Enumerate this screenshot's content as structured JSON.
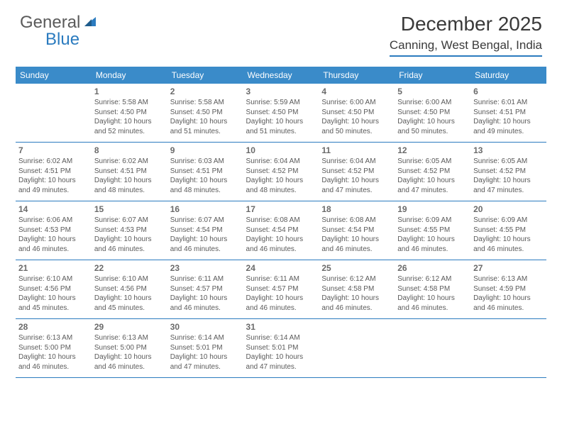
{
  "brand": {
    "part1": "General",
    "part2": "Blue"
  },
  "title": "December 2025",
  "location": "Canning, West Bengal, India",
  "colors": {
    "header_bg": "#3a8bc9",
    "header_rule": "#2b7bbf",
    "text": "#4a4a4a",
    "daynum": "#6a6a6a",
    "white": "#ffffff"
  },
  "typography": {
    "title_fontsize": 28,
    "location_fontsize": 17,
    "header_fontsize": 12,
    "daynum_fontsize": 12,
    "body_fontsize": 10
  },
  "dayHeaders": [
    "Sunday",
    "Monday",
    "Tuesday",
    "Wednesday",
    "Thursday",
    "Friday",
    "Saturday"
  ],
  "weeks": [
    [
      null,
      {
        "n": "1",
        "sr": "Sunrise: 5:58 AM",
        "ss": "Sunset: 4:50 PM",
        "dl": "Daylight: 10 hours and 52 minutes."
      },
      {
        "n": "2",
        "sr": "Sunrise: 5:58 AM",
        "ss": "Sunset: 4:50 PM",
        "dl": "Daylight: 10 hours and 51 minutes."
      },
      {
        "n": "3",
        "sr": "Sunrise: 5:59 AM",
        "ss": "Sunset: 4:50 PM",
        "dl": "Daylight: 10 hours and 51 minutes."
      },
      {
        "n": "4",
        "sr": "Sunrise: 6:00 AM",
        "ss": "Sunset: 4:50 PM",
        "dl": "Daylight: 10 hours and 50 minutes."
      },
      {
        "n": "5",
        "sr": "Sunrise: 6:00 AM",
        "ss": "Sunset: 4:50 PM",
        "dl": "Daylight: 10 hours and 50 minutes."
      },
      {
        "n": "6",
        "sr": "Sunrise: 6:01 AM",
        "ss": "Sunset: 4:51 PM",
        "dl": "Daylight: 10 hours and 49 minutes."
      }
    ],
    [
      {
        "n": "7",
        "sr": "Sunrise: 6:02 AM",
        "ss": "Sunset: 4:51 PM",
        "dl": "Daylight: 10 hours and 49 minutes."
      },
      {
        "n": "8",
        "sr": "Sunrise: 6:02 AM",
        "ss": "Sunset: 4:51 PM",
        "dl": "Daylight: 10 hours and 48 minutes."
      },
      {
        "n": "9",
        "sr": "Sunrise: 6:03 AM",
        "ss": "Sunset: 4:51 PM",
        "dl": "Daylight: 10 hours and 48 minutes."
      },
      {
        "n": "10",
        "sr": "Sunrise: 6:04 AM",
        "ss": "Sunset: 4:52 PM",
        "dl": "Daylight: 10 hours and 48 minutes."
      },
      {
        "n": "11",
        "sr": "Sunrise: 6:04 AM",
        "ss": "Sunset: 4:52 PM",
        "dl": "Daylight: 10 hours and 47 minutes."
      },
      {
        "n": "12",
        "sr": "Sunrise: 6:05 AM",
        "ss": "Sunset: 4:52 PM",
        "dl": "Daylight: 10 hours and 47 minutes."
      },
      {
        "n": "13",
        "sr": "Sunrise: 6:05 AM",
        "ss": "Sunset: 4:52 PM",
        "dl": "Daylight: 10 hours and 47 minutes."
      }
    ],
    [
      {
        "n": "14",
        "sr": "Sunrise: 6:06 AM",
        "ss": "Sunset: 4:53 PM",
        "dl": "Daylight: 10 hours and 46 minutes."
      },
      {
        "n": "15",
        "sr": "Sunrise: 6:07 AM",
        "ss": "Sunset: 4:53 PM",
        "dl": "Daylight: 10 hours and 46 minutes."
      },
      {
        "n": "16",
        "sr": "Sunrise: 6:07 AM",
        "ss": "Sunset: 4:54 PM",
        "dl": "Daylight: 10 hours and 46 minutes."
      },
      {
        "n": "17",
        "sr": "Sunrise: 6:08 AM",
        "ss": "Sunset: 4:54 PM",
        "dl": "Daylight: 10 hours and 46 minutes."
      },
      {
        "n": "18",
        "sr": "Sunrise: 6:08 AM",
        "ss": "Sunset: 4:54 PM",
        "dl": "Daylight: 10 hours and 46 minutes."
      },
      {
        "n": "19",
        "sr": "Sunrise: 6:09 AM",
        "ss": "Sunset: 4:55 PM",
        "dl": "Daylight: 10 hours and 46 minutes."
      },
      {
        "n": "20",
        "sr": "Sunrise: 6:09 AM",
        "ss": "Sunset: 4:55 PM",
        "dl": "Daylight: 10 hours and 46 minutes."
      }
    ],
    [
      {
        "n": "21",
        "sr": "Sunrise: 6:10 AM",
        "ss": "Sunset: 4:56 PM",
        "dl": "Daylight: 10 hours and 45 minutes."
      },
      {
        "n": "22",
        "sr": "Sunrise: 6:10 AM",
        "ss": "Sunset: 4:56 PM",
        "dl": "Daylight: 10 hours and 45 minutes."
      },
      {
        "n": "23",
        "sr": "Sunrise: 6:11 AM",
        "ss": "Sunset: 4:57 PM",
        "dl": "Daylight: 10 hours and 46 minutes."
      },
      {
        "n": "24",
        "sr": "Sunrise: 6:11 AM",
        "ss": "Sunset: 4:57 PM",
        "dl": "Daylight: 10 hours and 46 minutes."
      },
      {
        "n": "25",
        "sr": "Sunrise: 6:12 AM",
        "ss": "Sunset: 4:58 PM",
        "dl": "Daylight: 10 hours and 46 minutes."
      },
      {
        "n": "26",
        "sr": "Sunrise: 6:12 AM",
        "ss": "Sunset: 4:58 PM",
        "dl": "Daylight: 10 hours and 46 minutes."
      },
      {
        "n": "27",
        "sr": "Sunrise: 6:13 AM",
        "ss": "Sunset: 4:59 PM",
        "dl": "Daylight: 10 hours and 46 minutes."
      }
    ],
    [
      {
        "n": "28",
        "sr": "Sunrise: 6:13 AM",
        "ss": "Sunset: 5:00 PM",
        "dl": "Daylight: 10 hours and 46 minutes."
      },
      {
        "n": "29",
        "sr": "Sunrise: 6:13 AM",
        "ss": "Sunset: 5:00 PM",
        "dl": "Daylight: 10 hours and 46 minutes."
      },
      {
        "n": "30",
        "sr": "Sunrise: 6:14 AM",
        "ss": "Sunset: 5:01 PM",
        "dl": "Daylight: 10 hours and 47 minutes."
      },
      {
        "n": "31",
        "sr": "Sunrise: 6:14 AM",
        "ss": "Sunset: 5:01 PM",
        "dl": "Daylight: 10 hours and 47 minutes."
      },
      null,
      null,
      null
    ]
  ]
}
